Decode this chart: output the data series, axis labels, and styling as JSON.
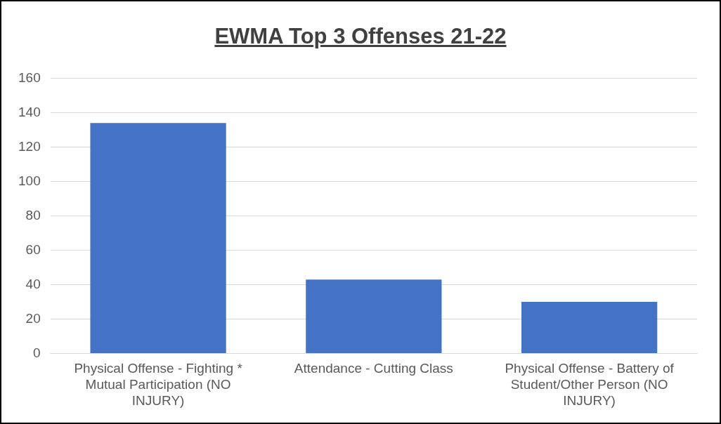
{
  "chart_data": {
    "type": "bar",
    "title": "EWMA Top 3 Offenses 21-22",
    "categories": [
      "Physical Offense - Fighting * Mutual Participation (NO INJURY)",
      "Attendance - Cutting Class",
      "Physical Offense - Battery of Student/Other Person (NO INJURY)"
    ],
    "values": [
      134,
      43,
      30
    ],
    "color": "#4472c4",
    "ylim": [
      0,
      160
    ],
    "yticks": [
      0,
      20,
      40,
      60,
      80,
      100,
      120,
      140,
      160
    ],
    "grid": "y"
  }
}
